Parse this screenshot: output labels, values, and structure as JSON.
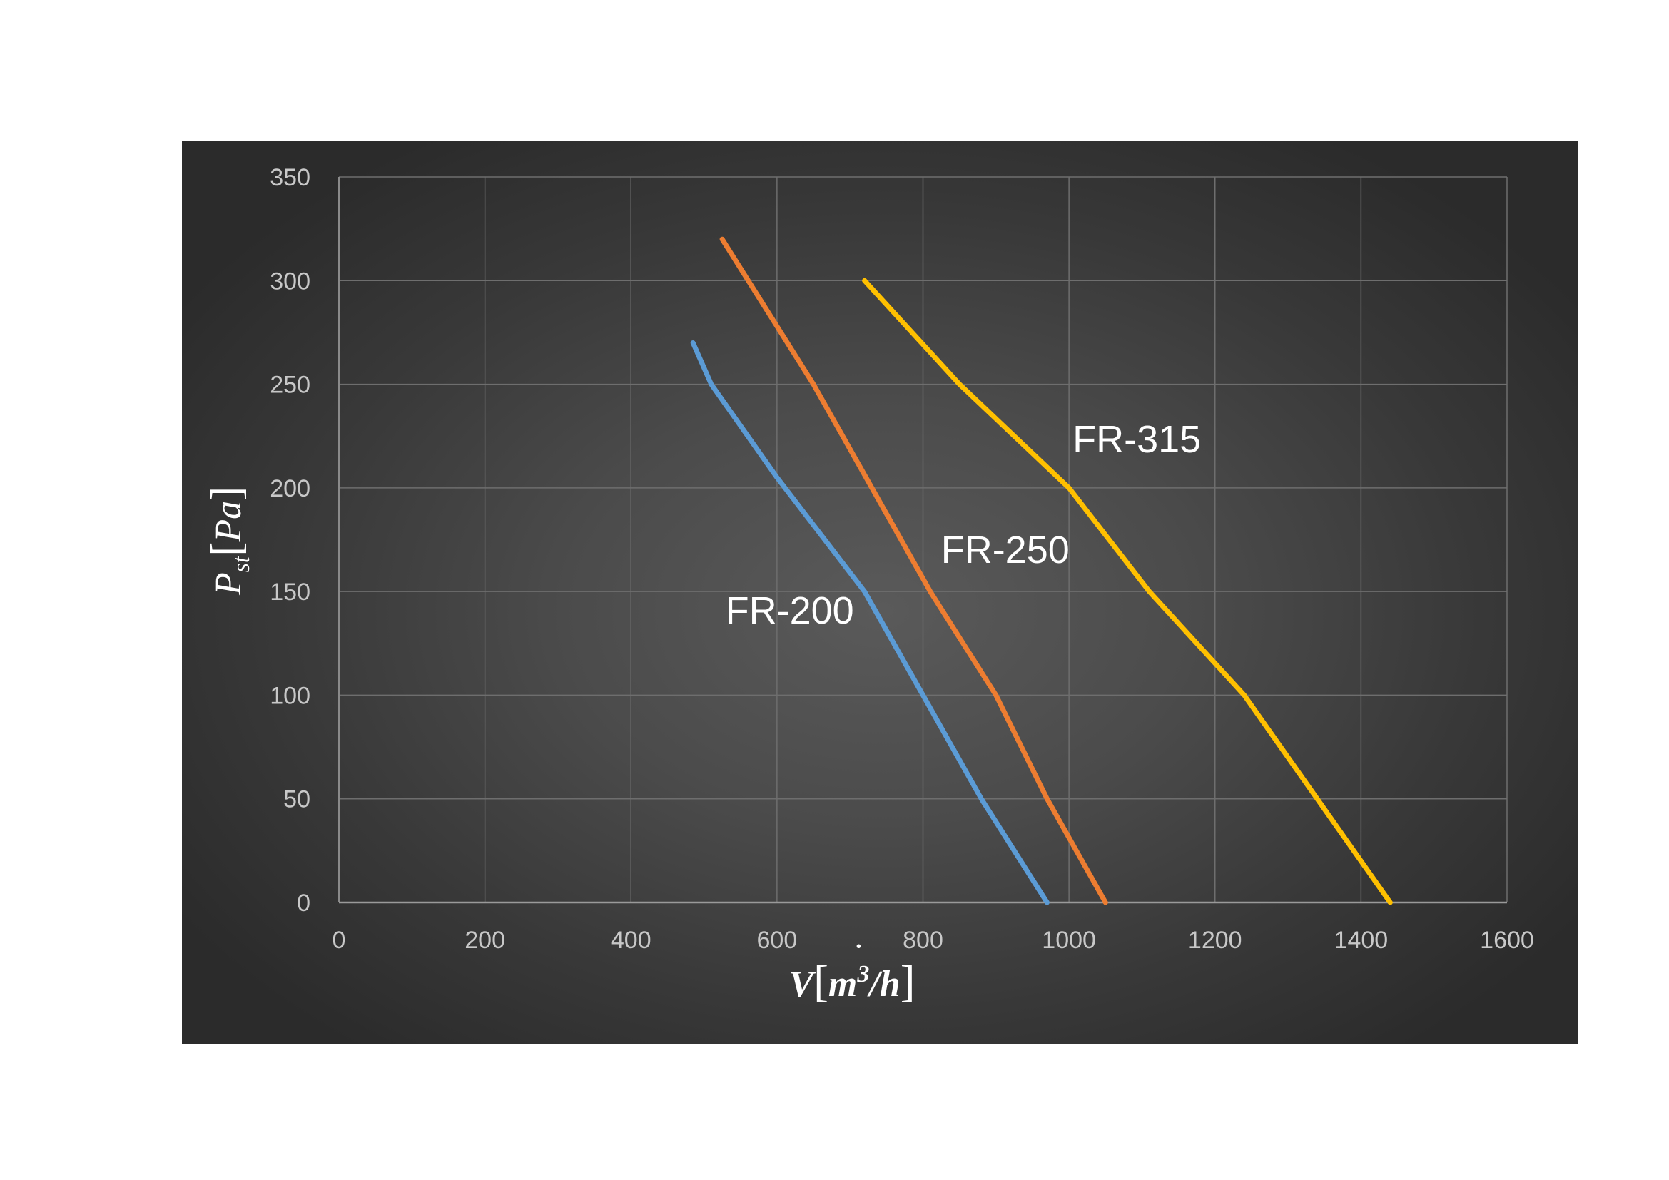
{
  "chart_data": {
    "type": "line",
    "xlabel": "V̇[m³/h]",
    "ylabel": "Pst[Pa]",
    "xlim": [
      0,
      1600
    ],
    "ylim": [
      0,
      350
    ],
    "x_ticks": [
      "0",
      "200",
      "400",
      "600",
      "800",
      "1000",
      "1200",
      "1400",
      "1600"
    ],
    "y_ticks": [
      "0",
      "50",
      "100",
      "150",
      "200",
      "250",
      "300",
      "350"
    ],
    "grid": true,
    "legend": "none",
    "series": [
      {
        "name": "FR-200",
        "color": "#5b9bd5",
        "points": [
          [
            485,
            270
          ],
          [
            510,
            250
          ],
          [
            600,
            205
          ],
          [
            720,
            150
          ],
          [
            800,
            100
          ],
          [
            880,
            50
          ],
          [
            970,
            0
          ]
        ]
      },
      {
        "name": "FR-250",
        "color": "#ed7d31",
        "points": [
          [
            525,
            320
          ],
          [
            650,
            250
          ],
          [
            730,
            200
          ],
          [
            810,
            150
          ],
          [
            900,
            100
          ],
          [
            970,
            50
          ],
          [
            1050,
            0
          ]
        ]
      },
      {
        "name": "FR-315",
        "color": "#ffc000",
        "points": [
          [
            720,
            300
          ],
          [
            850,
            250
          ],
          [
            1000,
            200
          ],
          [
            1110,
            150
          ],
          [
            1240,
            100
          ],
          [
            1340,
            50
          ],
          [
            1440,
            0
          ]
        ]
      }
    ]
  }
}
